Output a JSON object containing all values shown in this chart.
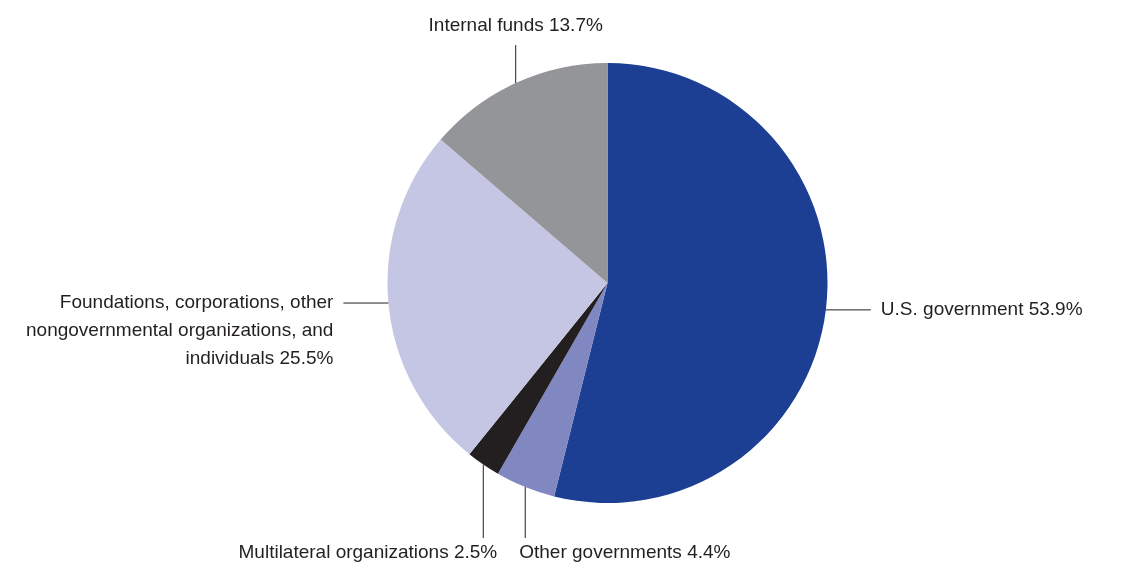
{
  "chart_data": {
    "type": "pie",
    "categories": [
      "U.S. government",
      "Other governments",
      "Multilateral organizations",
      "Foundations, corporations, other nongovernmental organizations, and individuals",
      "Internal funds"
    ],
    "values": [
      53.9,
      4.4,
      2.5,
      25.5,
      13.7
    ],
    "colors": [
      "#1c3f94",
      "#8187c0",
      "#231f20",
      "#c5c6e3",
      "#939598"
    ],
    "value_labels": [
      "53.9%",
      "4.4%",
      "2.5%",
      "25.5%",
      "13.7%"
    ],
    "legend": false
  }
}
